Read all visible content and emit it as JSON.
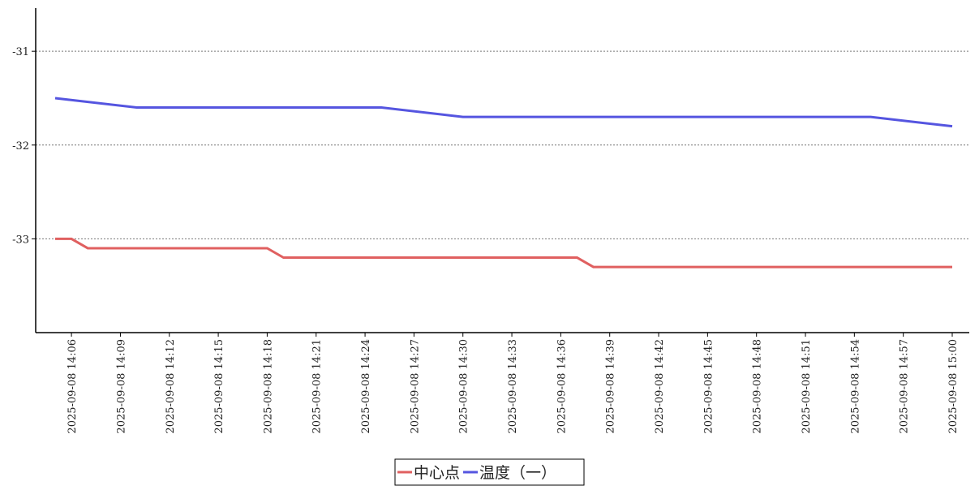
{
  "chart_data": {
    "type": "line",
    "xlim": [
      "2025-09-08 14:05",
      "2025-09-08 15:00"
    ],
    "xticks": [
      "2025-09-08 14:06",
      "2025-09-08 14:09",
      "2025-09-08 14:12",
      "2025-09-08 14:15",
      "2025-09-08 14:18",
      "2025-09-08 14:21",
      "2025-09-08 14:24",
      "2025-09-08 14:27",
      "2025-09-08 14:30",
      "2025-09-08 14:33",
      "2025-09-08 14:36",
      "2025-09-08 14:39",
      "2025-09-08 14:42",
      "2025-09-08 14:45",
      "2025-09-08 14:48",
      "2025-09-08 14:51",
      "2025-09-08 14:54",
      "2025-09-08 14:57",
      "2025-09-08 15:00"
    ],
    "ylim": [
      -34,
      -30.54
    ],
    "yticks": [
      -33,
      -32,
      -31
    ],
    "grid": true,
    "series": [
      {
        "name": "中心点",
        "color": "#e06060",
        "x": [
          "2025-09-08 14:05",
          "2025-09-08 14:06",
          "2025-09-08 14:07",
          "2025-09-08 14:08",
          "2025-09-08 14:09",
          "2025-09-08 14:10",
          "2025-09-08 14:11",
          "2025-09-08 14:12",
          "2025-09-08 14:13",
          "2025-09-08 14:14",
          "2025-09-08 14:15",
          "2025-09-08 14:16",
          "2025-09-08 14:17",
          "2025-09-08 14:18",
          "2025-09-08 14:19",
          "2025-09-08 14:20",
          "2025-09-08 14:21",
          "2025-09-08 14:22",
          "2025-09-08 14:23",
          "2025-09-08 14:24",
          "2025-09-08 14:25",
          "2025-09-08 14:26",
          "2025-09-08 14:27",
          "2025-09-08 14:28",
          "2025-09-08 14:29",
          "2025-09-08 14:30",
          "2025-09-08 14:31",
          "2025-09-08 14:32",
          "2025-09-08 14:33",
          "2025-09-08 14:34",
          "2025-09-08 14:35",
          "2025-09-08 14:36",
          "2025-09-08 14:37",
          "2025-09-08 14:38",
          "2025-09-08 14:39",
          "2025-09-08 14:40",
          "2025-09-08 14:41",
          "2025-09-08 14:42",
          "2025-09-08 14:43",
          "2025-09-08 14:44",
          "2025-09-08 14:45",
          "2025-09-08 14:46",
          "2025-09-08 14:47",
          "2025-09-08 14:48",
          "2025-09-08 14:49",
          "2025-09-08 14:50",
          "2025-09-08 14:51",
          "2025-09-08 14:52",
          "2025-09-08 14:53",
          "2025-09-08 14:54",
          "2025-09-08 14:55",
          "2025-09-08 14:56",
          "2025-09-08 14:57",
          "2025-09-08 14:58",
          "2025-09-08 14:59",
          "2025-09-08 15:00"
        ],
        "values": [
          -33,
          -33,
          -33.1,
          -33.1,
          -33.1,
          -33.1,
          -33.1,
          -33.1,
          -33.1,
          -33.1,
          -33.1,
          -33.1,
          -33.1,
          -33.1,
          -33.2,
          -33.2,
          -33.2,
          -33.2,
          -33.2,
          -33.2,
          -33.2,
          -33.2,
          -33.2,
          -33.2,
          -33.2,
          -33.2,
          -33.2,
          -33.2,
          -33.2,
          -33.2,
          -33.2,
          -33.2,
          -33.2,
          -33.3,
          -33.3,
          -33.3,
          -33.3,
          -33.3,
          -33.3,
          -33.3,
          -33.3,
          -33.3,
          -33.3,
          -33.3,
          -33.3,
          -33.3,
          -33.3,
          -33.3,
          -33.3,
          -33.3,
          -33.3,
          -33.3,
          -33.3,
          -33.3,
          -33.3,
          -33.3
        ]
      },
      {
        "name": "温度（一）",
        "color": "#5555e0",
        "x": [
          "2025-09-08 14:05",
          "2025-09-08 14:10",
          "2025-09-08 14:15",
          "2025-09-08 14:20",
          "2025-09-08 14:25",
          "2025-09-08 14:30",
          "2025-09-08 14:35",
          "2025-09-08 14:40",
          "2025-09-08 14:45",
          "2025-09-08 14:50",
          "2025-09-08 14:55",
          "2025-09-08 15:00"
        ],
        "values": [
          -31.5,
          -31.6,
          -31.6,
          -31.6,
          -31.6,
          -31.7,
          -31.7,
          -31.7,
          -31.7,
          -31.7,
          -31.7,
          -31.8
        ]
      }
    ]
  }
}
